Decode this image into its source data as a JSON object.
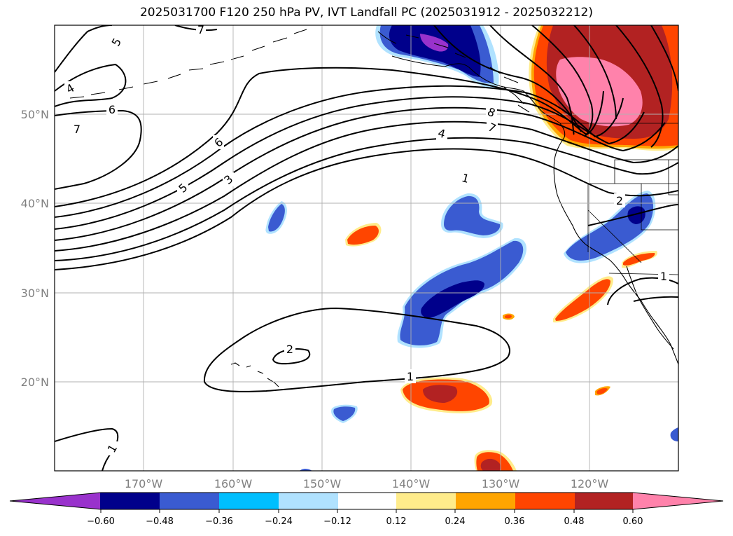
{
  "title": "2025031700 F120 250 hPa PV, IVT Landfall PC (2025031912 - 2025032212)",
  "colors": {
    "neg_060": "#9932cc",
    "neg_048": "#00008b",
    "neg_036": "#3a5bd1",
    "neg_024": "#00bfff",
    "neg_012": "#b0e2ff",
    "zero": "#ffffff",
    "pos_012": "#ffec8b",
    "pos_024": "#ffa500",
    "pos_036": "#ff4500",
    "pos_048": "#b22222",
    "pos_060": "#ff82ab",
    "contour": "#000000",
    "grid": "#b0b0b0",
    "tick_text": "#808080"
  },
  "lat_ticks": [
    "50°N",
    "40°N",
    "30°N",
    "20°N"
  ],
  "lon_ticks": [
    "170°W",
    "160°W",
    "150°W",
    "140°W",
    "130°W",
    "120°W"
  ],
  "contour_labels": [
    "5",
    "4",
    "6",
    "7",
    "6",
    "5",
    "3",
    "8",
    "7",
    "4",
    "1",
    "2",
    "1",
    "2",
    "1",
    "1",
    "7"
  ],
  "colorbar": {
    "labels": [
      "−0.60",
      "−0.48",
      "−0.36",
      "−0.24",
      "−0.12",
      "0.12",
      "0.24",
      "0.36",
      "0.48",
      "0.60"
    ]
  }
}
